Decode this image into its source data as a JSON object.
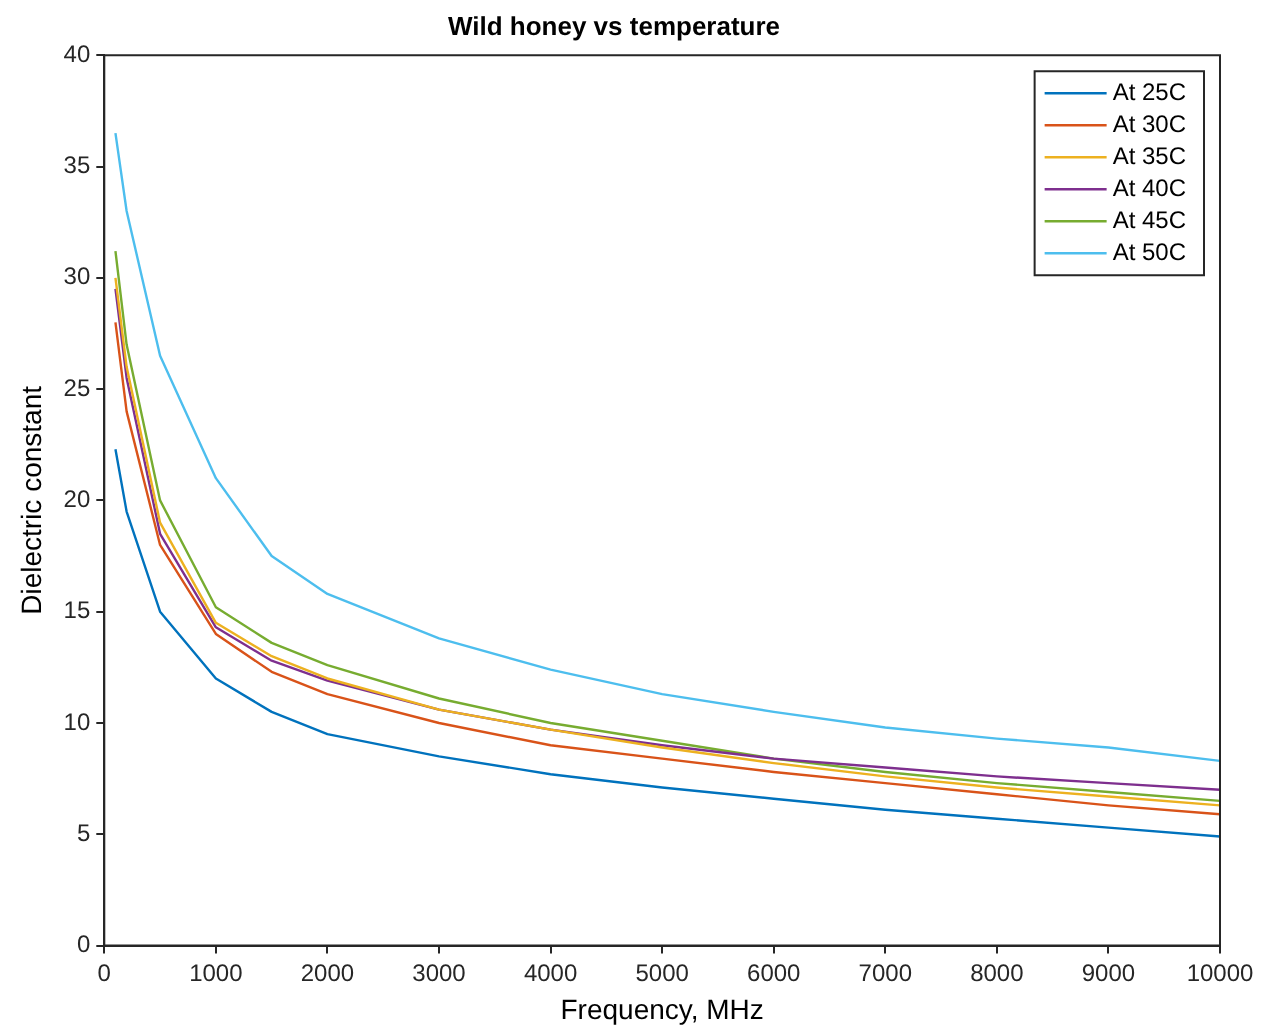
{
  "chart_data": {
    "type": "line",
    "title": "Wild honey vs temperature",
    "xlabel": "Frequency, MHz",
    "ylabel": "Dielectric constant",
    "x": [
      100,
      200,
      500,
      1000,
      1500,
      2000,
      3000,
      4000,
      5000,
      6000,
      7000,
      8000,
      9000,
      10000
    ],
    "series": [
      {
        "name": "At 25C",
        "color": "#0072bd",
        "values": [
          22.3,
          19.5,
          15,
          12,
          10.5,
          9.5,
          8.5,
          7.7,
          7.1,
          6.6,
          6.1,
          5.7,
          5.3,
          4.9
        ]
      },
      {
        "name": "At 30C",
        "color": "#d95319",
        "values": [
          28,
          24,
          18,
          14,
          12.3,
          11.3,
          10,
          9,
          8.4,
          7.8,
          7.3,
          6.8,
          6.3,
          5.9
        ]
      },
      {
        "name": "At 35C",
        "color": "#edb120",
        "values": [
          30,
          26,
          19,
          14.5,
          13,
          12,
          10.6,
          9.7,
          8.9,
          8.2,
          7.6,
          7.1,
          6.7,
          6.3
        ]
      },
      {
        "name": "At 40C",
        "color": "#7e2f8e",
        "values": [
          29.5,
          25.5,
          18.5,
          14.3,
          12.8,
          11.9,
          10.6,
          9.7,
          9,
          8.4,
          8,
          7.6,
          7.3,
          7
        ]
      },
      {
        "name": "At 45C",
        "color": "#77ac30",
        "values": [
          31.2,
          27,
          20,
          15.2,
          13.6,
          12.6,
          11.1,
          10,
          9.2,
          8.4,
          7.8,
          7.3,
          6.9,
          6.5
        ]
      },
      {
        "name": "At 50C",
        "color": "#4dbeee",
        "values": [
          36.5,
          33,
          26.5,
          21,
          17.5,
          15.8,
          13.8,
          12.4,
          11.3,
          10.5,
          9.8,
          9.3,
          8.9,
          8.3
        ]
      }
    ],
    "xlim": [
      0,
      10000
    ],
    "xticks": [
      0,
      1000,
      2000,
      3000,
      4000,
      5000,
      6000,
      7000,
      8000,
      9000,
      10000
    ],
    "ylim": [
      0,
      40
    ],
    "yticks": [
      0,
      5,
      10,
      15,
      20,
      25,
      30,
      35,
      40
    ],
    "grid": false,
    "legend": "top right",
    "marker": "none",
    "line_style": "solid"
  }
}
